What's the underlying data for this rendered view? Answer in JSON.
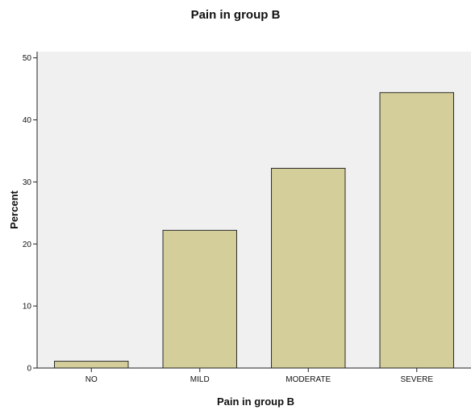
{
  "chart_data": {
    "type": "bar",
    "title": "Pain in group B",
    "xlabel": "Pain in group B",
    "ylabel": "Percent",
    "categories": [
      "NO",
      "MILD",
      "MODERATE",
      "SEVERE"
    ],
    "values": [
      1.1,
      22.2,
      32.2,
      44.4
    ],
    "ylim": [
      0,
      51
    ],
    "yticks": [
      "0",
      "10",
      "20",
      "30",
      "40",
      "50"
    ],
    "grid": false,
    "legend": "none",
    "colors": {
      "bar_fill": "#D3CE9A",
      "bar_stroke": "#2b2b2b",
      "plot_background": "#F0F0F0",
      "axis": "#222222"
    }
  }
}
